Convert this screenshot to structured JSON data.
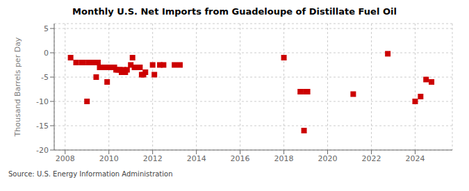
{
  "chart_data": {
    "type": "scatter",
    "title": "Monthly U.S. Net Imports from Guadeloupe of Distillate Fuel Oil",
    "ylabel": "Thousand Barrels per Day",
    "annotations": [
      "Source: U.S. Energy Information Administration"
    ],
    "x": [
      2008.25,
      2008.5,
      2008.75,
      2008.83,
      2009.0,
      2009.08,
      2009.17,
      2009.33,
      2009.42,
      2009.5,
      2009.58,
      2009.67,
      2009.75,
      2009.83,
      2009.92,
      2010.0,
      2010.08,
      2010.17,
      2010.25,
      2010.33,
      2010.42,
      2010.5,
      2010.58,
      2010.67,
      2010.75,
      2010.83,
      2011.0,
      2011.08,
      2011.17,
      2011.33,
      2011.42,
      2011.5,
      2011.58,
      2011.67,
      2012.0,
      2012.08,
      2012.33,
      2012.5,
      2013.0,
      2013.25,
      2018.0,
      2018.75,
      2018.92,
      2019.0,
      2019.08,
      2021.17,
      2022.75,
      2024.0,
      2024.25,
      2024.5,
      2024.75
    ],
    "values": [
      -1.0,
      -2.0,
      -2.0,
      -2.0,
      -10.0,
      -2.0,
      -2.0,
      -2.0,
      -5.0,
      -2.0,
      -3.0,
      -3.0,
      -3.0,
      -3.0,
      -6.0,
      -3.0,
      -3.0,
      -3.0,
      -3.0,
      -3.5,
      -3.5,
      -3.5,
      -4.0,
      -3.5,
      -4.0,
      -3.5,
      -2.5,
      -1.0,
      -3.0,
      -3.0,
      -3.0,
      -4.5,
      -4.5,
      -4.0,
      -2.5,
      -4.5,
      -2.5,
      -2.5,
      -2.5,
      -2.5,
      -1.0,
      -8.0,
      -16.0,
      -8.0,
      -8.0,
      -8.5,
      -0.2,
      -10.0,
      -9.0,
      -5.5,
      -6.0
    ],
    "color": "#cc0000",
    "marker": "square",
    "xlim": [
      2007.5,
      2025.7
    ],
    "xticks": [
      2008,
      2010,
      2012,
      2014,
      2016,
      2018,
      2020,
      2022,
      2024
    ],
    "ylim": [
      -20,
      6
    ],
    "yticks": [
      -20,
      -15,
      -10,
      -5,
      0,
      5
    ],
    "grid": true
  }
}
